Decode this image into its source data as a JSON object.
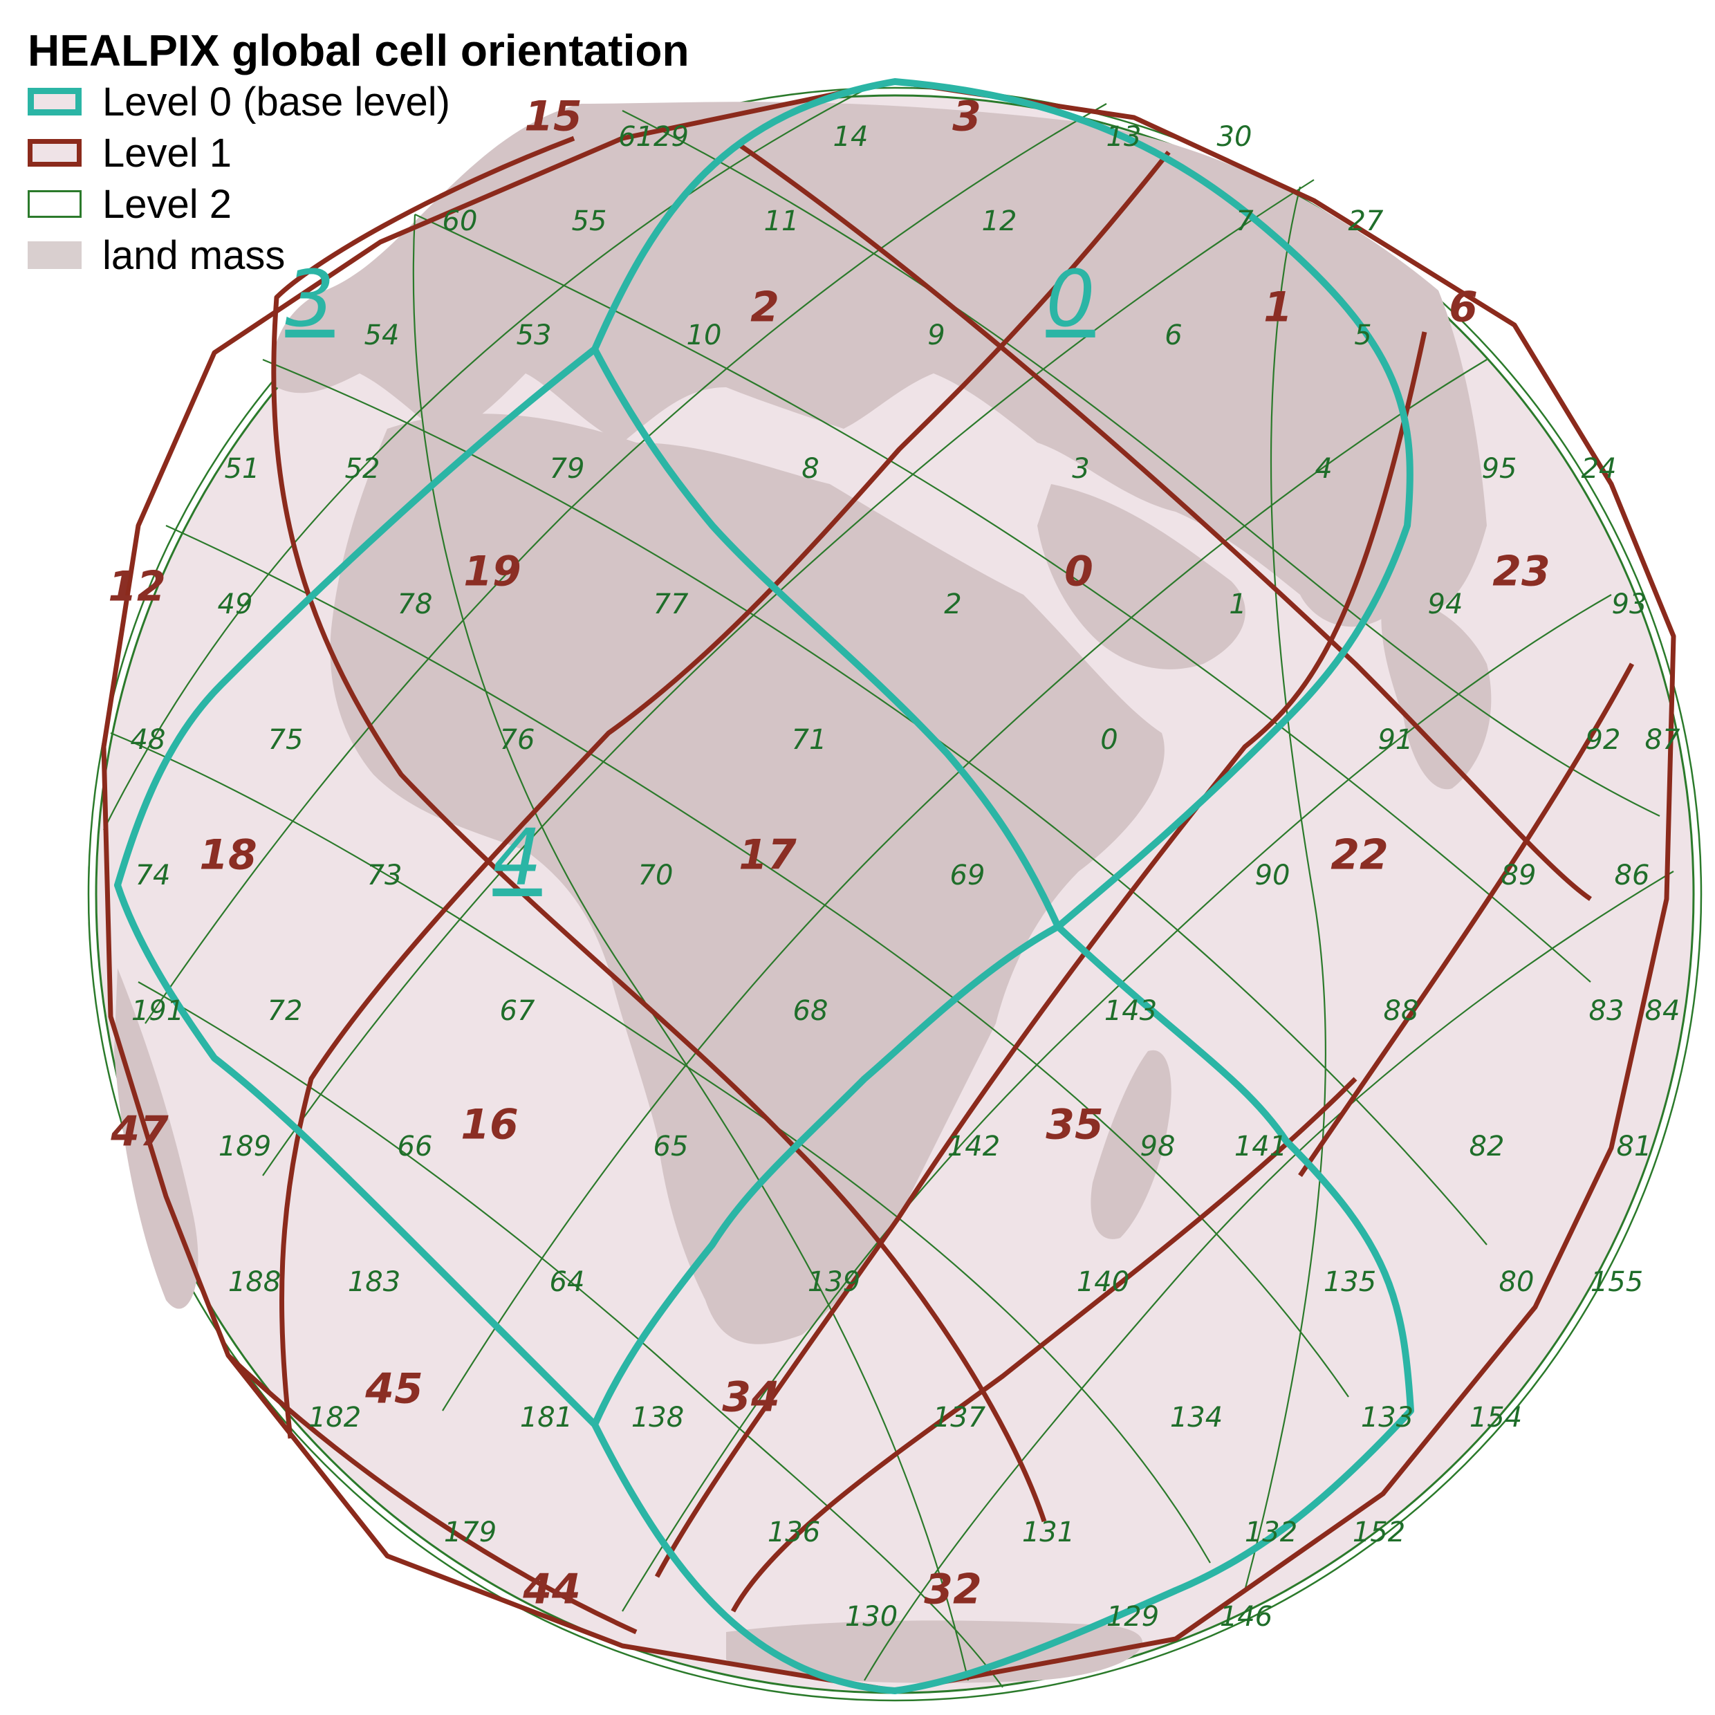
{
  "title": "HEALPIX global cell orientation",
  "legend": [
    {
      "label": "Level 0 (base level)"
    },
    {
      "label": "Level 1"
    },
    {
      "label": "Level 2"
    },
    {
      "label": "land mass"
    }
  ],
  "colors": {
    "level0": "#2bb5a5",
    "level1": "#8b2a1c",
    "level2": "#2b7a2b",
    "land": "#d4c4c6",
    "globe_fill": "#efe3e7"
  },
  "level0_labels": [
    "0",
    "3",
    "4"
  ],
  "level1_labels": [
    "15",
    "3",
    "2",
    "1",
    "6",
    "12",
    "19",
    "0",
    "23",
    "18",
    "17",
    "22",
    "47",
    "16",
    "35",
    "45",
    "34",
    "44",
    "32"
  ],
  "level2_labels": [
    "6129",
    "14",
    "13",
    "30",
    "60",
    "55",
    "11",
    "12",
    "7",
    "27",
    "54",
    "53",
    "10",
    "9",
    "6",
    "5",
    "51",
    "52",
    "79",
    "8",
    "3",
    "4",
    "95",
    "24",
    "49",
    "78",
    "77",
    "2",
    "1",
    "94",
    "93",
    "48",
    "75",
    "76",
    "71",
    "0",
    "91",
    "92",
    "87",
    "74",
    "73",
    "70",
    "69",
    "90",
    "89",
    "86",
    "191",
    "72",
    "67",
    "68",
    "143",
    "88",
    "83",
    "84",
    "189",
    "66",
    "65",
    "142",
    "98",
    "141",
    "82",
    "81",
    "188",
    "183",
    "64",
    "139",
    "140",
    "135",
    "80",
    "155",
    "182",
    "181",
    "138",
    "137",
    "134",
    "133",
    "154",
    "179",
    "136",
    "131",
    "132",
    "152",
    "130",
    "129",
    "146"
  ]
}
